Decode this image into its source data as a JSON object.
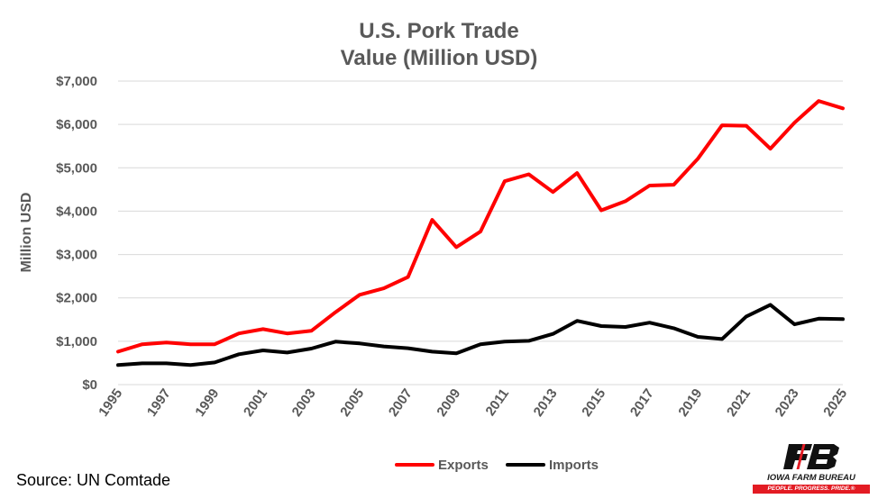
{
  "chart_data": {
    "type": "line",
    "title": [
      "U.S. Pork Trade",
      "Value (Million USD)"
    ],
    "xlabel": "",
    "ylabel": "Million USD",
    "x": [
      1995,
      1996,
      1997,
      1998,
      1999,
      2000,
      2001,
      2002,
      2003,
      2004,
      2005,
      2006,
      2007,
      2008,
      2009,
      2010,
      2011,
      2012,
      2013,
      2014,
      2015,
      2016,
      2017,
      2018,
      2019,
      2020,
      2021,
      2022,
      2023,
      2024,
      2025
    ],
    "x_tick_labels": [
      "1995",
      "1997",
      "1999",
      "2001",
      "2003",
      "2005",
      "2007",
      "2009",
      "2011",
      "2013",
      "2015",
      "2017",
      "2019",
      "2021",
      "2023",
      "2025"
    ],
    "y_tick_labels": [
      "$0",
      "$1,000",
      "$2,000",
      "$3,000",
      "$4,000",
      "$5,000",
      "$6,000",
      "$7,000"
    ],
    "ylim": [
      0,
      7000
    ],
    "grid": "horizontal",
    "legend_position": "bottom",
    "series": [
      {
        "name": "Exports",
        "color": "#ff0000",
        "values": [
          760,
          930,
          970,
          930,
          930,
          1180,
          1280,
          1180,
          1240,
          1670,
          2070,
          2220,
          2480,
          3800,
          3170,
          3530,
          4690,
          4850,
          4440,
          4880,
          4020,
          4230,
          4590,
          4610,
          5210,
          5980,
          5970,
          5440,
          6040,
          6540,
          6370
        ]
      },
      {
        "name": "Imports",
        "color": "#000000",
        "values": [
          450,
          490,
          490,
          450,
          510,
          700,
          790,
          740,
          830,
          990,
          950,
          880,
          840,
          760,
          720,
          930,
          990,
          1010,
          1170,
          1470,
          1350,
          1330,
          1430,
          1300,
          1100,
          1050,
          1570,
          1840,
          1390,
          1520,
          1510
        ]
      }
    ]
  },
  "source": "Source: UN Comtade",
  "logo": {
    "name": "IOWA FARM BUREAU",
    "tagline": "PEOPLE. PROGRESS. PRIDE.®",
    "color": "#e31b23"
  }
}
